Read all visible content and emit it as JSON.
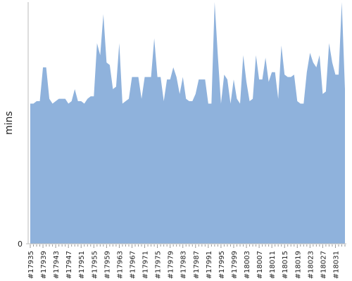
{
  "chart_data": {
    "type": "area",
    "y_label": "mins",
    "color": "#8fb2dc",
    "categories": [
      "#17935",
      null,
      null,
      null,
      "#17939",
      null,
      null,
      null,
      "#17943",
      null,
      null,
      null,
      "#17947",
      null,
      null,
      null,
      "#17951",
      null,
      null,
      null,
      "#17955",
      null,
      null,
      null,
      "#17959",
      null,
      null,
      null,
      "#17963",
      null,
      null,
      null,
      "#17967",
      null,
      null,
      null,
      "#17971",
      null,
      null,
      null,
      "#17975",
      null,
      null,
      null,
      "#17979",
      null,
      null,
      null,
      "#17983",
      null,
      null,
      null,
      "#17987",
      null,
      null,
      null,
      "#17991",
      null,
      null,
      null,
      "#17995",
      null,
      null,
      null,
      "#17999",
      null,
      null,
      null,
      "#18003",
      null,
      null,
      null,
      "#18007",
      null,
      null,
      null,
      "#18011",
      null,
      null,
      null,
      "#18015",
      null,
      null,
      null,
      "#18019",
      null,
      null,
      null,
      "#18023",
      null,
      null,
      null,
      "#18027",
      null,
      null,
      null,
      "#18031",
      null,
      null,
      null
    ],
    "values": [
      58,
      58,
      59,
      59,
      73,
      73,
      60,
      58,
      59,
      60,
      60,
      60,
      58,
      59,
      64,
      59,
      59,
      58,
      60,
      61,
      61,
      83,
      78,
      95,
      75,
      74,
      64,
      65,
      83,
      58,
      59,
      60,
      69,
      69,
      69,
      60,
      69,
      69,
      69,
      85,
      69,
      69,
      59,
      68,
      68,
      73,
      69,
      62,
      69,
      60,
      59,
      59,
      62,
      68,
      68,
      68,
      58,
      58,
      100,
      78,
      58,
      70,
      68,
      58,
      68,
      60,
      58,
      78,
      67,
      59,
      60,
      78,
      68,
      68,
      77,
      67,
      71,
      71,
      60,
      82,
      70,
      69,
      69,
      70,
      59,
      58,
      58,
      71,
      79,
      75,
      73,
      78,
      62,
      63,
      83,
      75,
      70,
      70,
      100,
      64
    ],
    "ylim": [
      0,
      100
    ],
    "yticks": [
      0
    ]
  }
}
